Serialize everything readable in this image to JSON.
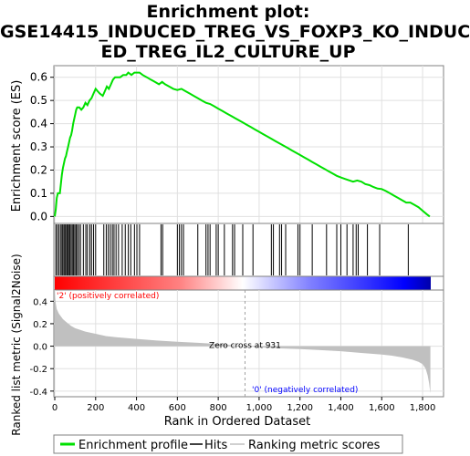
{
  "chart_data": {
    "type": "line",
    "title_lines": [
      "Enrichment plot:",
      "GSE14415_INDUCED_TREG_VS_FOXP3_KO_INDUC",
      "ED_TREG_IL2_CULTURE_UP"
    ],
    "xlabel": "Rank in Ordered Dataset",
    "es_ylabel": "Enrichment score (ES)",
    "metric_ylabel": "Ranked list metric (Signal2Noise)",
    "xlim": [
      0,
      1840
    ],
    "es_ylim": [
      -0.03,
      0.65
    ],
    "metric_ylim": [
      -0.45,
      0.5
    ],
    "x_ticks": [
      "0",
      "200",
      "400",
      "600",
      "800",
      "1,000",
      "1,200",
      "1,400",
      "1,600",
      "1,800"
    ],
    "x_tick_values": [
      0,
      200,
      400,
      600,
      800,
      1000,
      1200,
      1400,
      1600,
      1800
    ],
    "es_ticks": [
      "0.0",
      "0.1",
      "0.2",
      "0.3",
      "0.4",
      "0.5",
      "0.6"
    ],
    "es_tick_values": [
      0,
      0.1,
      0.2,
      0.3,
      0.4,
      0.5,
      0.6
    ],
    "metric_ticks": [
      "-0.4",
      "-0.2",
      "0.0",
      "0.2",
      "0.4"
    ],
    "metric_tick_values": [
      -0.4,
      -0.2,
      0,
      0.2,
      0.4
    ],
    "positive_label": "'2' (positively correlated)",
    "negative_label": "'0' (negatively correlated)",
    "zero_cross_label": "Zero cross at 931",
    "zero_cross": 931,
    "enrichment_profile": [
      [
        0,
        0
      ],
      [
        5,
        0.03
      ],
      [
        10,
        0.08
      ],
      [
        15,
        0.1
      ],
      [
        25,
        0.1
      ],
      [
        30,
        0.14
      ],
      [
        35,
        0.18
      ],
      [
        40,
        0.21
      ],
      [
        45,
        0.23
      ],
      [
        50,
        0.25
      ],
      [
        55,
        0.26
      ],
      [
        60,
        0.28
      ],
      [
        65,
        0.3
      ],
      [
        70,
        0.32
      ],
      [
        75,
        0.34
      ],
      [
        80,
        0.35
      ],
      [
        85,
        0.37
      ],
      [
        90,
        0.4
      ],
      [
        95,
        0.42
      ],
      [
        100,
        0.44
      ],
      [
        105,
        0.46
      ],
      [
        110,
        0.47
      ],
      [
        120,
        0.47
      ],
      [
        130,
        0.46
      ],
      [
        140,
        0.47
      ],
      [
        150,
        0.49
      ],
      [
        160,
        0.48
      ],
      [
        170,
        0.5
      ],
      [
        180,
        0.51
      ],
      [
        190,
        0.53
      ],
      [
        200,
        0.55
      ],
      [
        210,
        0.54
      ],
      [
        220,
        0.53
      ],
      [
        235,
        0.52
      ],
      [
        245,
        0.54
      ],
      [
        255,
        0.56
      ],
      [
        265,
        0.55
      ],
      [
        275,
        0.57
      ],
      [
        285,
        0.59
      ],
      [
        295,
        0.6
      ],
      [
        305,
        0.6
      ],
      [
        320,
        0.6
      ],
      [
        335,
        0.61
      ],
      [
        350,
        0.61
      ],
      [
        360,
        0.62
      ],
      [
        375,
        0.61
      ],
      [
        390,
        0.62
      ],
      [
        405,
        0.62
      ],
      [
        415,
        0.62
      ],
      [
        430,
        0.61
      ],
      [
        450,
        0.6
      ],
      [
        470,
        0.59
      ],
      [
        490,
        0.58
      ],
      [
        510,
        0.57
      ],
      [
        525,
        0.58
      ],
      [
        540,
        0.57
      ],
      [
        560,
        0.56
      ],
      [
        580,
        0.55
      ],
      [
        600,
        0.545
      ],
      [
        620,
        0.55
      ],
      [
        640,
        0.54
      ],
      [
        660,
        0.53
      ],
      [
        680,
        0.52
      ],
      [
        700,
        0.51
      ],
      [
        720,
        0.5
      ],
      [
        740,
        0.49
      ],
      [
        760,
        0.485
      ],
      [
        780,
        0.475
      ],
      [
        800,
        0.465
      ],
      [
        820,
        0.455
      ],
      [
        840,
        0.445
      ],
      [
        860,
        0.435
      ],
      [
        880,
        0.425
      ],
      [
        900,
        0.415
      ],
      [
        920,
        0.405
      ],
      [
        940,
        0.395
      ],
      [
        960,
        0.385
      ],
      [
        980,
        0.375
      ],
      [
        1000,
        0.365
      ],
      [
        1020,
        0.355
      ],
      [
        1040,
        0.345
      ],
      [
        1060,
        0.335
      ],
      [
        1080,
        0.325
      ],
      [
        1100,
        0.315
      ],
      [
        1120,
        0.305
      ],
      [
        1140,
        0.295
      ],
      [
        1160,
        0.285
      ],
      [
        1180,
        0.275
      ],
      [
        1200,
        0.265
      ],
      [
        1220,
        0.255
      ],
      [
        1240,
        0.245
      ],
      [
        1260,
        0.235
      ],
      [
        1280,
        0.225
      ],
      [
        1300,
        0.215
      ],
      [
        1320,
        0.205
      ],
      [
        1340,
        0.195
      ],
      [
        1360,
        0.185
      ],
      [
        1380,
        0.175
      ],
      [
        1400,
        0.168
      ],
      [
        1420,
        0.162
      ],
      [
        1440,
        0.156
      ],
      [
        1460,
        0.15
      ],
      [
        1480,
        0.155
      ],
      [
        1500,
        0.15
      ],
      [
        1520,
        0.14
      ],
      [
        1540,
        0.135
      ],
      [
        1560,
        0.127
      ],
      [
        1580,
        0.12
      ],
      [
        1600,
        0.118
      ],
      [
        1620,
        0.11
      ],
      [
        1640,
        0.1
      ],
      [
        1660,
        0.09
      ],
      [
        1680,
        0.08
      ],
      [
        1700,
        0.07
      ],
      [
        1720,
        0.06
      ],
      [
        1740,
        0.06
      ],
      [
        1760,
        0.05
      ],
      [
        1780,
        0.04
      ],
      [
        1800,
        0.025
      ],
      [
        1820,
        0.01
      ],
      [
        1835,
        0.0
      ]
    ],
    "hits": [
      5,
      12,
      20,
      28,
      35,
      40,
      46,
      52,
      58,
      63,
      68,
      74,
      80,
      86,
      92,
      98,
      104,
      110,
      118,
      126,
      140,
      152,
      160,
      172,
      180,
      190,
      200,
      240,
      252,
      262,
      272,
      282,
      290,
      300,
      312,
      330,
      345,
      360,
      372,
      390,
      402,
      415,
      520,
      528,
      600,
      610,
      620,
      630,
      700,
      740,
      750,
      760,
      790,
      800,
      830,
      870,
      880,
      920,
      970,
      1060,
      1070,
      1100,
      1110,
      1130,
      1190,
      1200,
      1260,
      1330,
      1380,
      1400,
      1430,
      1460,
      1475,
      1485,
      1530,
      1590,
      1730
    ],
    "metric_profile": [
      [
        0,
        0.48
      ],
      [
        5,
        0.38
      ],
      [
        10,
        0.33
      ],
      [
        20,
        0.29
      ],
      [
        40,
        0.24
      ],
      [
        60,
        0.21
      ],
      [
        80,
        0.18
      ],
      [
        100,
        0.16
      ],
      [
        150,
        0.13
      ],
      [
        200,
        0.11
      ],
      [
        250,
        0.09
      ],
      [
        300,
        0.08
      ],
      [
        400,
        0.065
      ],
      [
        500,
        0.05
      ],
      [
        600,
        0.04
      ],
      [
        700,
        0.03
      ],
      [
        800,
        0.02
      ],
      [
        900,
        0.005
      ],
      [
        931,
        0.0
      ],
      [
        1000,
        -0.01
      ],
      [
        1100,
        -0.02
      ],
      [
        1200,
        -0.025
      ],
      [
        1300,
        -0.035
      ],
      [
        1400,
        -0.045
      ],
      [
        1500,
        -0.06
      ],
      [
        1600,
        -0.075
      ],
      [
        1650,
        -0.085
      ],
      [
        1700,
        -0.1
      ],
      [
        1750,
        -0.12
      ],
      [
        1780,
        -0.14
      ],
      [
        1800,
        -0.16
      ],
      [
        1815,
        -0.2
      ],
      [
        1825,
        -0.26
      ],
      [
        1832,
        -0.33
      ],
      [
        1838,
        -0.42
      ]
    ],
    "legend": [
      "Enrichment profile",
      "Hits",
      "Ranking metric scores"
    ],
    "colors": {
      "profile": "#00e000",
      "hits": "#000000",
      "metric_fill": "#c0c0c0",
      "positive": "#ff0000",
      "negative": "#0000ff",
      "neg_bar_end": "#0000aa"
    }
  }
}
